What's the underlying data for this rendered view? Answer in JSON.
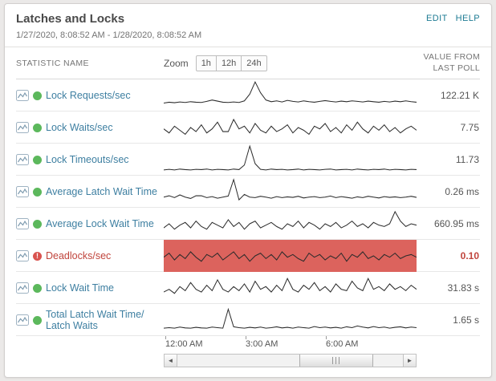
{
  "header": {
    "title": "Latches and Locks",
    "date_range": "1/27/2020, 8:08:52 AM - 1/28/2020, 8:08:52 AM",
    "edit_label": "EDIT",
    "help_label": "HELP"
  },
  "table": {
    "statistic_col": "STATISTIC NAME",
    "zoom_label": "Zoom",
    "zoom_options": [
      "1h",
      "12h",
      "24h"
    ],
    "value_col_line1": "VALUE FROM",
    "value_col_line2": "LAST POLL"
  },
  "rows": [
    {
      "label": "Lock Requests/sec",
      "value": "122.21 K",
      "status": "up",
      "spark": [
        0.22,
        0.25,
        0.23,
        0.26,
        0.24,
        0.27,
        0.25,
        0.24,
        0.28,
        0.33,
        0.29,
        0.25,
        0.24,
        0.26,
        0.24,
        0.3,
        0.55,
        1.0,
        0.6,
        0.33,
        0.27,
        0.3,
        0.26,
        0.32,
        0.28,
        0.26,
        0.3,
        0.27,
        0.25,
        0.28,
        0.31,
        0.28,
        0.26,
        0.29,
        0.27,
        0.3,
        0.28,
        0.26,
        0.29,
        0.27,
        0.25,
        0.28,
        0.26,
        0.29,
        0.27,
        0.3,
        0.27,
        0.25
      ]
    },
    {
      "label": "Lock Waits/sec",
      "value": "7.75",
      "status": "up",
      "spark": [
        0.45,
        0.3,
        0.55,
        0.4,
        0.25,
        0.5,
        0.35,
        0.6,
        0.3,
        0.45,
        0.7,
        0.35,
        0.35,
        0.8,
        0.45,
        0.55,
        0.3,
        0.65,
        0.4,
        0.3,
        0.55,
        0.35,
        0.45,
        0.6,
        0.3,
        0.5,
        0.4,
        0.25,
        0.55,
        0.45,
        0.65,
        0.35,
        0.5,
        0.3,
        0.6,
        0.4,
        0.7,
        0.45,
        0.3,
        0.55,
        0.4,
        0.6,
        0.35,
        0.5,
        0.3,
        0.45,
        0.55,
        0.4
      ]
    },
    {
      "label": "Lock Timeouts/sec",
      "value": "11.73",
      "status": "up",
      "spark": [
        0.12,
        0.14,
        0.12,
        0.15,
        0.13,
        0.12,
        0.14,
        0.13,
        0.15,
        0.12,
        0.14,
        0.13,
        0.12,
        0.15,
        0.13,
        0.3,
        1.0,
        0.35,
        0.14,
        0.12,
        0.15,
        0.13,
        0.14,
        0.12,
        0.13,
        0.15,
        0.12,
        0.14,
        0.13,
        0.12,
        0.14,
        0.15,
        0.12,
        0.13,
        0.14,
        0.12,
        0.15,
        0.13,
        0.12,
        0.14,
        0.13,
        0.15,
        0.12,
        0.14,
        0.13,
        0.12,
        0.14,
        0.13
      ]
    },
    {
      "label": "Average Latch Wait Time",
      "value": "0.26 ms",
      "status": "up",
      "spark": [
        0.3,
        0.35,
        0.28,
        0.38,
        0.3,
        0.25,
        0.35,
        0.35,
        0.28,
        0.32,
        0.26,
        0.3,
        0.34,
        0.95,
        0.2,
        0.4,
        0.3,
        0.28,
        0.33,
        0.3,
        0.26,
        0.32,
        0.28,
        0.31,
        0.29,
        0.33,
        0.27,
        0.3,
        0.32,
        0.28,
        0.3,
        0.34,
        0.28,
        0.32,
        0.29,
        0.26,
        0.31,
        0.28,
        0.33,
        0.3,
        0.27,
        0.32,
        0.29,
        0.31,
        0.28,
        0.3,
        0.33,
        0.29
      ]
    },
    {
      "label": "Average Lock Wait Time",
      "value": "660.95 ms",
      "status": "up",
      "spark": [
        0.35,
        0.5,
        0.3,
        0.45,
        0.55,
        0.35,
        0.6,
        0.4,
        0.3,
        0.55,
        0.45,
        0.35,
        0.65,
        0.4,
        0.55,
        0.3,
        0.5,
        0.6,
        0.35,
        0.45,
        0.55,
        0.4,
        0.3,
        0.5,
        0.4,
        0.6,
        0.35,
        0.55,
        0.45,
        0.3,
        0.5,
        0.4,
        0.55,
        0.35,
        0.45,
        0.6,
        0.4,
        0.5,
        0.35,
        0.55,
        0.45,
        0.4,
        0.5,
        0.95,
        0.6,
        0.4,
        0.5,
        0.45
      ]
    },
    {
      "label": "Deadlocks/sec",
      "value": "0.10",
      "status": "critical",
      "spark": [
        0.45,
        0.6,
        0.35,
        0.55,
        0.4,
        0.65,
        0.45,
        0.3,
        0.55,
        0.45,
        0.6,
        0.35,
        0.5,
        0.65,
        0.4,
        0.55,
        0.3,
        0.5,
        0.6,
        0.4,
        0.55,
        0.35,
        0.65,
        0.45,
        0.55,
        0.4,
        0.3,
        0.6,
        0.45,
        0.55,
        0.35,
        0.5,
        0.4,
        0.6,
        0.3,
        0.55,
        0.45,
        0.65,
        0.4,
        0.5,
        0.35,
        0.55,
        0.45,
        0.6,
        0.4,
        0.5,
        0.55,
        0.45
      ]
    },
    {
      "label": "Lock Wait Time",
      "value": "31.83 s",
      "status": "up",
      "spark": [
        0.35,
        0.45,
        0.3,
        0.55,
        0.4,
        0.7,
        0.45,
        0.35,
        0.6,
        0.4,
        0.8,
        0.45,
        0.35,
        0.55,
        0.4,
        0.65,
        0.35,
        0.75,
        0.45,
        0.55,
        0.35,
        0.6,
        0.4,
        0.85,
        0.45,
        0.35,
        0.6,
        0.45,
        0.7,
        0.4,
        0.55,
        0.35,
        0.65,
        0.45,
        0.4,
        0.75,
        0.5,
        0.4,
        0.85,
        0.45,
        0.55,
        0.4,
        0.65,
        0.45,
        0.55,
        0.4,
        0.6,
        0.45
      ]
    },
    {
      "label": "Total Latch Wait Time/ Latch Waits",
      "value": "1.65 s",
      "status": "up",
      "spark": [
        0.2,
        0.22,
        0.2,
        0.24,
        0.21,
        0.2,
        0.23,
        0.21,
        0.2,
        0.24,
        0.22,
        0.2,
        0.9,
        0.25,
        0.22,
        0.2,
        0.23,
        0.21,
        0.24,
        0.2,
        0.22,
        0.25,
        0.21,
        0.23,
        0.2,
        0.24,
        0.22,
        0.2,
        0.26,
        0.22,
        0.24,
        0.21,
        0.23,
        0.2,
        0.25,
        0.22,
        0.28,
        0.24,
        0.21,
        0.26,
        0.22,
        0.24,
        0.2,
        0.23,
        0.25,
        0.21,
        0.24,
        0.22
      ]
    }
  ],
  "axis": {
    "tick_labels": [
      "12:00 AM",
      "3:00 AM",
      "6:00 AM"
    ]
  },
  "colors": {
    "link_teal": "#1d7b93",
    "stat_link_blue": "#3e7fa1",
    "status_up_green": "#5cb85c",
    "status_critical_red": "#d9534f",
    "alert_band_red": "#dc635d",
    "alert_value_red": "#c0443c",
    "sparkline": "#2b2b2b"
  }
}
